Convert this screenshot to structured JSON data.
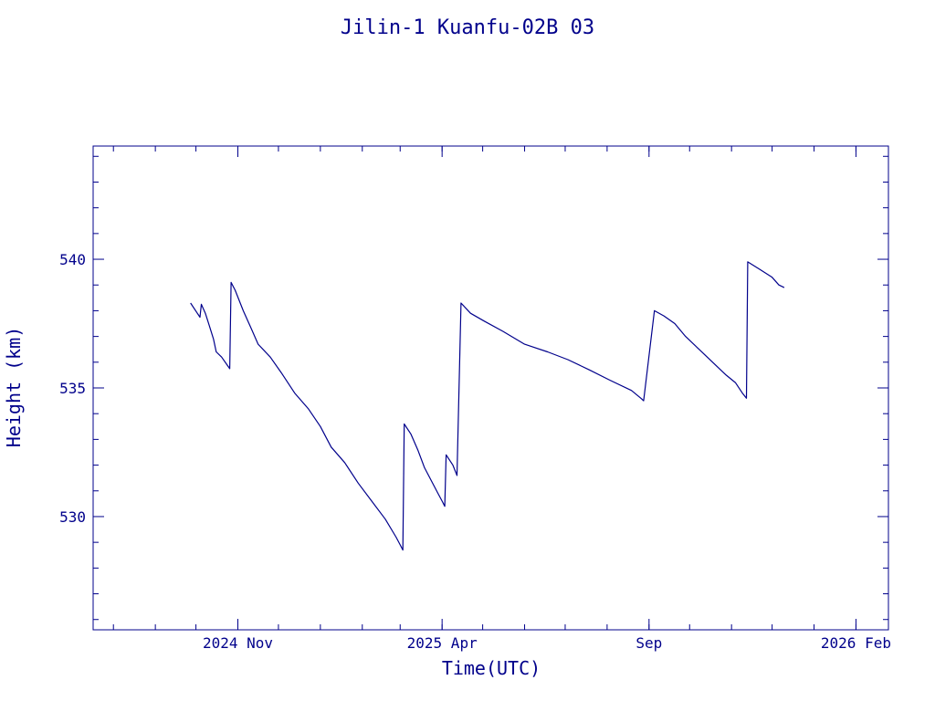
{
  "chart_data": {
    "type": "line",
    "title": "Jilin-1 Kuanfu-02B 03",
    "xlabel": "Time(UTC)",
    "ylabel": "Height (km)",
    "x_scale": "time",
    "xlim": [
      "2024-07-17",
      "2026-02-25"
    ],
    "ylim": [
      525.6,
      544.4
    ],
    "x_ticks": [
      {
        "date": "2024-11-01",
        "label": "2024 Nov"
      },
      {
        "date": "2025-04-01",
        "label": "2025 Apr"
      },
      {
        "date": "2025-09-01",
        "label": "Sep"
      },
      {
        "date": "2026-02-01",
        "label": "2026 Feb"
      }
    ],
    "y_ticks": [
      530,
      535,
      540
    ],
    "grid": false,
    "legend": "none",
    "color": "#00008b",
    "series": [
      {
        "points": [
          [
            "2024-09-27",
            538.3
          ],
          [
            "2024-10-02",
            537.9
          ],
          [
            "2024-10-04",
            537.75
          ],
          [
            "2024-10-05",
            538.25
          ],
          [
            "2024-10-08",
            537.9
          ],
          [
            "2024-10-11",
            537.4
          ],
          [
            "2024-10-14",
            536.9
          ],
          [
            "2024-10-16",
            536.4
          ],
          [
            "2024-10-20",
            536.2
          ],
          [
            "2024-10-24",
            535.9
          ],
          [
            "2024-10-26",
            535.75
          ],
          [
            "2024-10-27",
            539.1
          ],
          [
            "2024-10-30",
            538.8
          ],
          [
            "2024-11-05",
            538.0
          ],
          [
            "2024-11-11",
            537.3
          ],
          [
            "2024-11-16",
            536.7
          ],
          [
            "2024-11-25",
            536.2
          ],
          [
            "2024-12-03",
            535.6
          ],
          [
            "2024-12-13",
            534.8
          ],
          [
            "2024-12-23",
            534.2
          ],
          [
            "2025-01-01",
            533.5
          ],
          [
            "2025-01-09",
            532.7
          ],
          [
            "2025-01-19",
            532.1
          ],
          [
            "2025-01-29",
            531.3
          ],
          [
            "2025-02-08",
            530.6
          ],
          [
            "2025-02-18",
            529.9
          ],
          [
            "2025-02-26",
            529.2
          ],
          [
            "2025-03-01",
            528.9
          ],
          [
            "2025-03-03",
            528.7
          ],
          [
            "2025-03-04",
            533.6
          ],
          [
            "2025-03-09",
            533.2
          ],
          [
            "2025-03-14",
            532.6
          ],
          [
            "2025-03-19",
            531.9
          ],
          [
            "2025-03-24",
            531.4
          ],
          [
            "2025-03-29",
            530.9
          ],
          [
            "2025-04-01",
            530.6
          ],
          [
            "2025-04-03",
            530.4
          ],
          [
            "2025-04-04",
            532.4
          ],
          [
            "2025-04-09",
            532.0
          ],
          [
            "2025-04-12",
            531.6
          ],
          [
            "2025-04-15",
            538.3
          ],
          [
            "2025-04-22",
            537.9
          ],
          [
            "2025-05-02",
            537.6
          ],
          [
            "2025-05-16",
            537.2
          ],
          [
            "2025-06-01",
            536.7
          ],
          [
            "2025-06-18",
            536.4
          ],
          [
            "2025-07-03",
            536.1
          ],
          [
            "2025-07-19",
            535.7
          ],
          [
            "2025-08-03",
            535.3
          ],
          [
            "2025-08-19",
            534.9
          ],
          [
            "2025-08-26",
            534.6
          ],
          [
            "2025-08-28",
            534.5
          ],
          [
            "2025-09-05",
            538.0
          ],
          [
            "2025-09-12",
            537.8
          ],
          [
            "2025-09-20",
            537.5
          ],
          [
            "2025-09-28",
            537.0
          ],
          [
            "2025-10-08",
            536.5
          ],
          [
            "2025-10-18",
            536.0
          ],
          [
            "2025-10-28",
            535.5
          ],
          [
            "2025-11-04",
            535.2
          ],
          [
            "2025-11-09",
            534.8
          ],
          [
            "2025-11-12",
            534.6
          ],
          [
            "2025-11-13",
            539.9
          ],
          [
            "2025-11-22",
            539.6
          ],
          [
            "2025-12-01",
            539.3
          ],
          [
            "2025-12-06",
            539.0
          ],
          [
            "2025-12-10",
            538.9
          ]
        ]
      }
    ]
  }
}
